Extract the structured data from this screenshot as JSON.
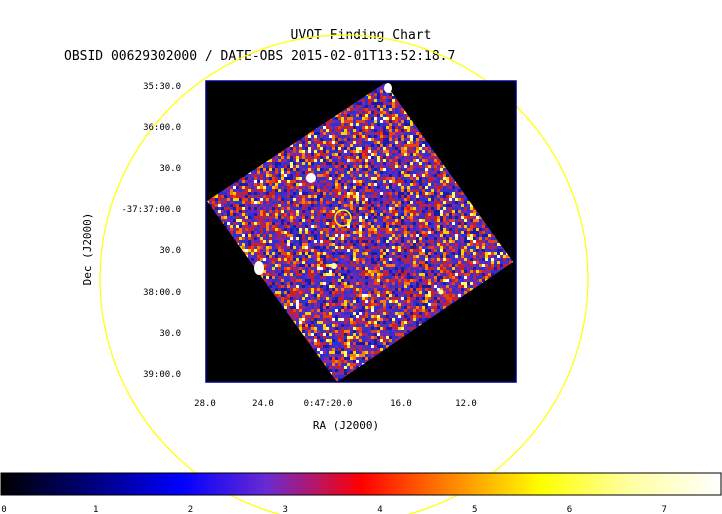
{
  "chart_data": {
    "type": "heatmap",
    "title": "UVOT Finding Chart",
    "subtitle": "OBSID 00629302000 / DATE-OBS 2015-02-01T13:52:18.7",
    "xlabel": "RA (J2000)",
    "ylabel": "Dec (J2000)",
    "x_ticks": [
      "28.0",
      "24.0",
      "0:47:20.0",
      "16.0",
      "12.0"
    ],
    "y_ticks": [
      "35:30.0",
      "36:00.0",
      "30.0",
      "-37:37:00.0",
      "30.0",
      "38:00.0",
      "30.0",
      "39:00.0"
    ],
    "colorbar_ticks": [
      "0",
      "1",
      "2",
      "3",
      "4",
      "5",
      "6",
      "7"
    ],
    "colorbar_range": [
      0,
      7.6
    ],
    "colormap": [
      "#000000",
      "#0000ff",
      "#ff0000",
      "#ffff00",
      "#ffffff"
    ],
    "circle_color": "#ffff00",
    "background": "#000000"
  }
}
